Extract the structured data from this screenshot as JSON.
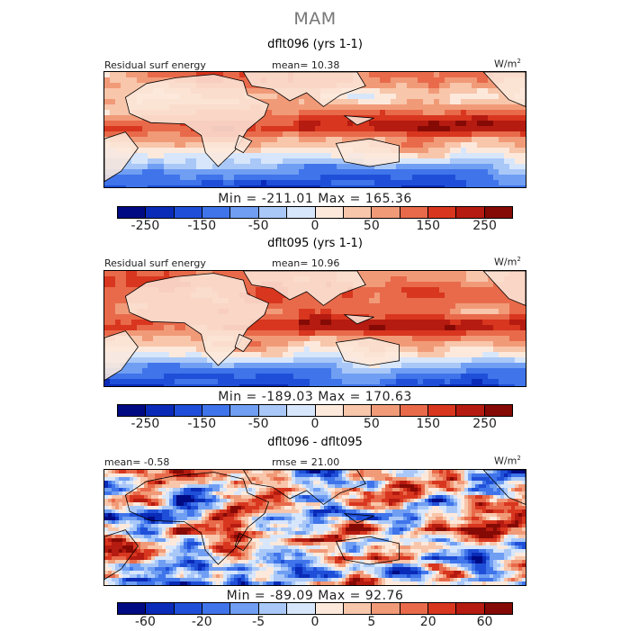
{
  "figure_title": "MAM",
  "units": {
    "base": "W/m",
    "exp": "2"
  },
  "colors": {
    "land_outline": "#000000",
    "title_gray": "#777777",
    "palette": [
      "#000a82",
      "#0a2bb8",
      "#1f4fd8",
      "#3f74ea",
      "#6f9ef3",
      "#a9c8f8",
      "#d7e6fb",
      "#fde9dc",
      "#f8c6ab",
      "#f19a78",
      "#e86a4a",
      "#d8361f",
      "#b51b10",
      "#850a05"
    ]
  },
  "panels": [
    {
      "title": "dflt096 (yrs 1-1)",
      "left_label": "Residual surf energy",
      "center_label": "mean=  10.38",
      "minmax": "Min = -211.01 Max = 165.36",
      "tick_labels": [
        "-250",
        "-150",
        "-50",
        "0",
        "50",
        "150",
        "250"
      ]
    },
    {
      "title": "dflt095 (yrs 1-1)",
      "left_label": "Residual surf energy",
      "center_label": "mean=  10.96",
      "minmax": "Min = -189.03 Max = 170.63",
      "tick_labels": [
        "-250",
        "-150",
        "-50",
        "0",
        "50",
        "150",
        "250"
      ]
    },
    {
      "title": "dflt096 - dflt095",
      "left_label": "mean=  -0.58",
      "center_label": "rmse =  21.00",
      "minmax": "Min = -89.09 Max =  92.76",
      "tick_labels": [
        "-60",
        "-20",
        "-5",
        "0",
        "5",
        "20",
        "60"
      ]
    }
  ],
  "chart_data": {
    "type": "heatmap",
    "title": "MAM",
    "maps": [
      {
        "name": "dflt096 (yrs 1-1)",
        "field": "Residual surf energy",
        "mean": 10.38,
        "min": -211.01,
        "max": 165.36,
        "contour_levels": [
          -300,
          -250,
          -200,
          -150,
          -100,
          -50,
          -25,
          0,
          25,
          50,
          100,
          150,
          200,
          250,
          300
        ]
      },
      {
        "name": "dflt095 (yrs 1-1)",
        "field": "Residual surf energy",
        "mean": 10.96,
        "min": -189.03,
        "max": 170.63,
        "contour_levels": [
          -300,
          -250,
          -200,
          -150,
          -100,
          -50,
          -25,
          0,
          25,
          50,
          100,
          150,
          200,
          250,
          300
        ]
      },
      {
        "name": "dflt096 - dflt095",
        "mean": -0.58,
        "rmse": 21.0,
        "min": -89.09,
        "max": 92.76,
        "contour_levels": [
          -80,
          -60,
          -40,
          -20,
          -10,
          -5,
          -2,
          0,
          2,
          5,
          10,
          20,
          40,
          60,
          80
        ]
      }
    ]
  }
}
